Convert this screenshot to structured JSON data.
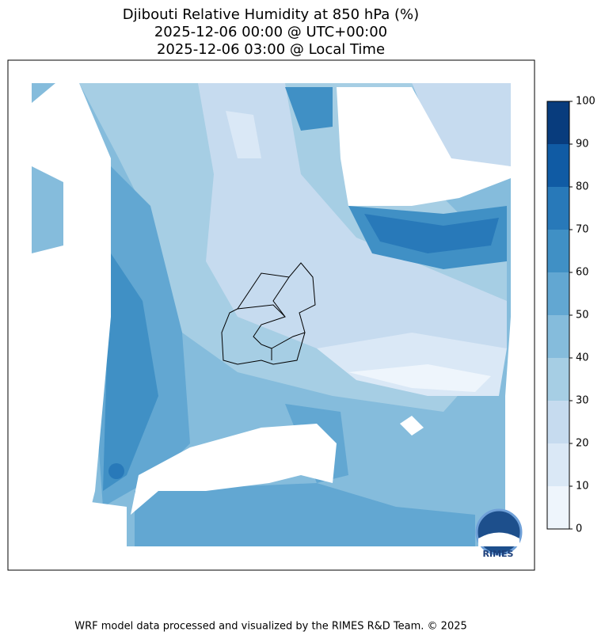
{
  "title": [
    "Djibouti Relative Humidity at 850 hPa (%)",
    "2025-12-06 00:00 @ UTC+00:00",
    "2025-12-06 03:00 @ Local Time"
  ],
  "colorbar": {
    "levels": [
      0,
      10,
      20,
      30,
      40,
      50,
      60,
      70,
      80,
      90,
      100
    ],
    "colors": [
      "#eef5fc",
      "#dae8f6",
      "#c6dbef",
      "#a6cee4",
      "#85bcdc",
      "#62a7d2",
      "#4090c5",
      "#2879b9",
      "#105ba4",
      "#083c7d"
    ]
  },
  "logo": "RIMES",
  "footer": "WRF model data processed and visualized by the RIMES R&D Team. © 2025"
}
